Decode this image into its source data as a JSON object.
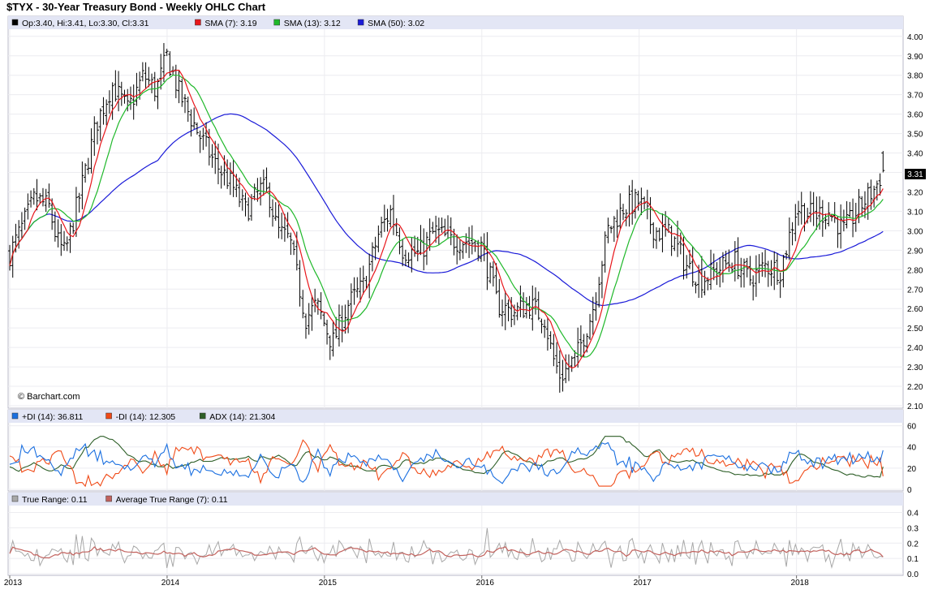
{
  "title": "$TYX - 30-Year Treasury Bond - Weekly OHLC Chart",
  "credit": "© Barchart.com",
  "colors": {
    "panel_header_bg": "#e3e6f5",
    "panel_border": "#b8b8c8",
    "grid": "#ececf0",
    "ohlc": "#000000",
    "sma7": "#e8161b",
    "sma13": "#1fb82a",
    "sma50": "#1a1ad8",
    "plus_di": "#1a6fe0",
    "minus_di": "#f04a17",
    "adx": "#2e5f28",
    "true_range": "#a8a8a8",
    "atr": "#c2625e"
  },
  "legends": {
    "price": [
      {
        "label": "Op:3.40, Hi:3.41, Lo:3.30, Cl:3.31",
        "color": "#000000"
      },
      {
        "label": "SMA (7): 3.19",
        "color": "#e8161b"
      },
      {
        "label": "SMA (13): 3.12",
        "color": "#1fb82a"
      },
      {
        "label": "SMA (50): 3.02",
        "color": "#1a1ad8"
      }
    ],
    "dmi": [
      {
        "label": "+DI (14): 36.811",
        "color": "#1a6fe0"
      },
      {
        "label": "-DI (14): 12.305",
        "color": "#f04a17"
      },
      {
        "label": "ADX (14): 21.304",
        "color": "#2e5f28"
      }
    ],
    "tr": [
      {
        "label": "True Range: 0.11",
        "color": "#a8a8a8"
      },
      {
        "label": "Average True Range (7): 0.11",
        "color": "#c2625e"
      }
    ]
  },
  "last_price_badge": "3.31",
  "axes": {
    "price_ticks": [
      "2.10",
      "2.20",
      "2.30",
      "2.40",
      "2.50",
      "2.60",
      "2.70",
      "2.80",
      "2.90",
      "3.00",
      "3.10",
      "3.20",
      "3.30",
      "3.40",
      "3.50",
      "3.60",
      "3.70",
      "3.80",
      "3.90",
      "4.00"
    ],
    "dmi_ticks": [
      "0",
      "20",
      "40",
      "60"
    ],
    "tr_ticks": [
      "0.0",
      "0.1",
      "0.2",
      "0.3",
      "0.4"
    ],
    "x_labels": [
      "2013",
      "2014",
      "2015",
      "2016",
      "2017",
      "2018"
    ]
  },
  "chart_data": {
    "type": "line",
    "title": "$TYX - 30-Year Treasury Bond - Weekly OHLC Chart",
    "x_range": [
      2013.0,
      2018.6
    ],
    "year_labels": [
      2013,
      2014,
      2015,
      2016,
      2017,
      2018
    ],
    "ylim": [
      2.1,
      4.02
    ],
    "price_anchors": {
      "x": [
        2013.0,
        2013.08,
        2013.16,
        2013.25,
        2013.3,
        2013.35,
        2013.45,
        2013.55,
        2013.65,
        2013.75,
        2013.85,
        2013.93,
        2014.0,
        2014.08,
        2014.2,
        2014.3,
        2014.4,
        2014.5,
        2014.6,
        2014.65,
        2014.7,
        2014.78,
        2014.88,
        2014.95,
        2015.05,
        2015.15,
        2015.25,
        2015.35,
        2015.42,
        2015.5,
        2015.6,
        2015.7,
        2015.8,
        2015.9,
        2016.0,
        2016.1,
        2016.2,
        2016.3,
        2016.4,
        2016.45,
        2016.5,
        2016.55,
        2016.6,
        2016.7,
        2016.8,
        2016.9,
        2017.0,
        2017.1,
        2017.2,
        2017.3,
        2017.4,
        2017.5,
        2017.6,
        2017.7,
        2017.8,
        2017.9,
        2018.0,
        2018.1,
        2018.2,
        2018.3,
        2018.4,
        2018.5,
        2018.55
      ],
      "close": [
        2.88,
        3.02,
        3.17,
        3.12,
        2.95,
        2.88,
        3.2,
        3.55,
        3.75,
        3.62,
        3.8,
        3.72,
        3.9,
        3.7,
        3.5,
        3.35,
        3.25,
        3.1,
        3.22,
        3.18,
        3.0,
        2.95,
        2.55,
        2.62,
        2.42,
        2.62,
        2.72,
        3.0,
        3.1,
        2.9,
        2.88,
        3.0,
        2.95,
        2.95,
        2.92,
        2.62,
        2.58,
        2.62,
        2.55,
        2.35,
        2.25,
        2.3,
        2.35,
        2.58,
        3.0,
        3.12,
        3.15,
        3.0,
        2.98,
        2.82,
        2.75,
        2.8,
        2.85,
        2.75,
        2.82,
        2.8,
        3.12,
        3.08,
        3.1,
        3.0,
        3.12,
        3.22,
        3.31
      ]
    },
    "last_bar": {
      "open": 3.4,
      "high": 3.41,
      "low": 3.3,
      "close": 3.31
    },
    "series": [
      {
        "name": "SMA (7)",
        "period": 7,
        "last": 3.19
      },
      {
        "name": "SMA (13)",
        "period": 13,
        "last": 3.12
      },
      {
        "name": "SMA (50)",
        "period": 50,
        "last": 3.02
      }
    ],
    "indicators": {
      "dmi": {
        "ylim": [
          0,
          60
        ],
        "last": {
          "plus_di": 36.811,
          "minus_di": 12.305,
          "adx": 21.304
        }
      },
      "true_range": {
        "ylim": [
          0,
          0.45
        ],
        "last": {
          "true_range": 0.11,
          "atr7": 0.11
        }
      }
    },
    "grid": true
  }
}
